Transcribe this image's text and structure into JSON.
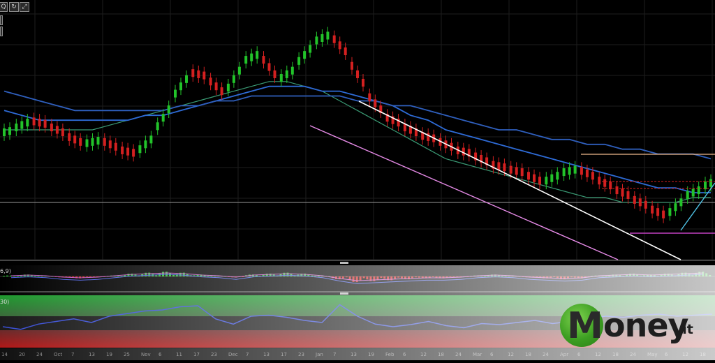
{
  "toolbar": {
    "zoom_label": "Q",
    "refresh_icon": "refresh-icon",
    "expand_icon": "expand-icon"
  },
  "indicator_labels": {
    "macd": "6,9)",
    "oscillator": "30)"
  },
  "logo": {
    "m": "M",
    "rest": "oney",
    "tld": ".it"
  },
  "colors": {
    "bull": "#22c32a",
    "bear": "#d42020",
    "ma_fast": "#3a9a74",
    "ma_mid": "#2e6bd6",
    "ma_slow": "#2f5fbd",
    "channel_upper": "#ffffff",
    "channel_lower": "#e58ae6",
    "resistance": "#f0b98c",
    "support": "#c040c0",
    "trend_up": "#4fc3e6",
    "osc_line": "#3a4fd6"
  },
  "chart_data": [
    {
      "type": "candlestick",
      "xlabel": "",
      "ylabel": "",
      "x": [
        "14",
        "20",
        "24",
        "Oct",
        "7",
        "13",
        "19",
        "25",
        "Nov",
        "6",
        "11",
        "17",
        "23",
        "Dec",
        "7",
        "13",
        "17",
        "23",
        "Jan",
        "7",
        "13",
        "19",
        "Feb",
        "6",
        "12",
        "18",
        "24",
        "Mar",
        "6",
        "12",
        "18",
        "24",
        "Apr",
        "6",
        "12",
        "18",
        "24",
        "May",
        "6",
        "12",
        "18"
      ],
      "close": [
        64,
        66,
        65,
        63,
        61,
        62,
        60,
        59,
        63,
        70,
        76,
        75,
        71,
        78,
        80,
        74,
        77,
        82,
        84,
        79,
        72,
        67,
        65,
        63,
        62,
        60,
        59,
        57,
        56,
        55,
        53,
        55,
        56,
        54,
        52,
        50,
        48,
        46,
        50,
        52,
        54
      ],
      "moving_averages": [
        {
          "values": [
            64,
            64,
            64,
            64,
            64,
            64,
            65,
            66,
            67,
            68,
            69,
            70,
            71,
            72,
            73,
            74,
            74,
            73,
            72,
            70,
            68,
            66,
            64,
            62,
            60,
            58,
            57,
            56,
            55,
            54,
            53,
            52,
            51,
            50,
            50,
            49,
            49,
            49,
            49,
            50,
            50
          ]
        },
        {
          "values": [
            68,
            67,
            66,
            66,
            66,
            66,
            66,
            66,
            67,
            67,
            68,
            69,
            70,
            71,
            72,
            73,
            73,
            73,
            72,
            72,
            71,
            70,
            69,
            67,
            66,
            64,
            63,
            62,
            61,
            60,
            59,
            58,
            57,
            56,
            55,
            54,
            53,
            52,
            52,
            51,
            51
          ]
        },
        {
          "values": [
            72,
            71,
            70,
            69,
            68,
            68,
            68,
            68,
            68,
            68,
            69,
            69,
            70,
            70,
            71,
            71,
            71,
            71,
            71,
            71,
            70,
            70,
            69,
            69,
            68,
            67,
            66,
            65,
            64,
            64,
            63,
            62,
            62,
            61,
            61,
            60,
            60,
            59,
            59,
            59,
            58
          ]
        }
      ],
      "annotations": [
        "descending channel upper",
        "descending channel lower",
        "horizontal resistance",
        "horizontal support",
        "rising trendline"
      ]
    },
    {
      "type": "histogram",
      "values": [
        0.1,
        0.2,
        0.1,
        -0.1,
        -0.2,
        -0.1,
        0.1,
        0.3,
        0.4,
        0.5,
        0.4,
        0.2,
        0.1,
        -0.1,
        0.2,
        0.3,
        0.4,
        0.3,
        0.1,
        -0.3,
        -0.6,
        -0.5,
        -0.4,
        -0.3,
        -0.2,
        -0.2,
        -0.1,
        0.1,
        0.2,
        0.1,
        -0.1,
        -0.2,
        -0.3,
        -0.2,
        0.1,
        0.2,
        0.3,
        0.2,
        0.3,
        0.4,
        0.5
      ]
    },
    {
      "type": "line",
      "values": [
        40,
        35,
        45,
        50,
        55,
        48,
        60,
        65,
        70,
        72,
        78,
        80,
        55,
        45,
        60,
        62,
        58,
        52,
        48,
        82,
        60,
        45,
        40,
        44,
        50,
        42,
        38,
        46,
        44,
        48,
        52,
        46,
        50,
        56,
        60,
        58,
        62,
        64,
        60,
        62,
        64
      ]
    }
  ]
}
